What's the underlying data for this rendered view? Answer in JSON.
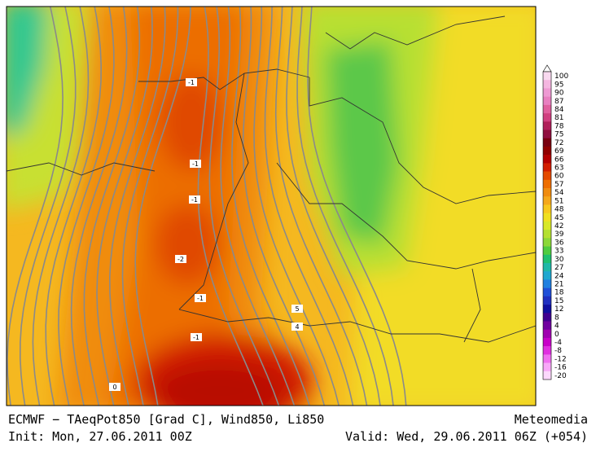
{
  "footer": {
    "title": "ECMWF − TAeqPot850 [Grad C], Wind850, Li850",
    "source": "Meteomedia",
    "init": "Init: Mon, 27.06.2011 00Z",
    "valid": "Valid: Wed, 29.06.2011 06Z (+054)"
  },
  "contour_labels": [
    "-1",
    "-1",
    "-1",
    "-2",
    "-1",
    "-1",
    "0",
    "5",
    "4"
  ],
  "colorbar": [
    {
      "label": "100",
      "color": "#f9d9f0"
    },
    {
      "label": "95",
      "color": "#f4b6e0"
    },
    {
      "label": "90",
      "color": "#ee9ad3"
    },
    {
      "label": "87",
      "color": "#e880c0"
    },
    {
      "label": "84",
      "color": "#e0609e"
    },
    {
      "label": "81",
      "color": "#d04080"
    },
    {
      "label": "78",
      "color": "#b0205a"
    },
    {
      "label": "75",
      "color": "#901040"
    },
    {
      "label": "72",
      "color": "#780010"
    },
    {
      "label": "69",
      "color": "#900000"
    },
    {
      "label": "66",
      "color": "#b40000"
    },
    {
      "label": "63",
      "color": "#d21e00"
    },
    {
      "label": "60",
      "color": "#e44a00"
    },
    {
      "label": "57",
      "color": "#ee6e00"
    },
    {
      "label": "54",
      "color": "#f08c10"
    },
    {
      "label": "51",
      "color": "#f5a81c"
    },
    {
      "label": "48",
      "color": "#f8c81e"
    },
    {
      "label": "45",
      "color": "#f0e020"
    },
    {
      "label": "42",
      "color": "#d8e828"
    },
    {
      "label": "39",
      "color": "#b4e030"
    },
    {
      "label": "36",
      "color": "#8cd838"
    },
    {
      "label": "33",
      "color": "#50cc40"
    },
    {
      "label": "30",
      "color": "#20c070"
    },
    {
      "label": "27",
      "color": "#20b8a8"
    },
    {
      "label": "24",
      "color": "#20a8d0"
    },
    {
      "label": "21",
      "color": "#2080e0"
    },
    {
      "label": "18",
      "color": "#2050d8"
    },
    {
      "label": "15",
      "color": "#2030c0"
    },
    {
      "label": "12",
      "color": "#1010a0"
    },
    {
      "label": "8",
      "color": "#400090"
    },
    {
      "label": "4",
      "color": "#7000a0"
    },
    {
      "label": "0",
      "color": "#a000b0"
    },
    {
      "label": "-4",
      "color": "#c800c8"
    },
    {
      "label": "-8",
      "color": "#e030e0"
    },
    {
      "label": "-12",
      "color": "#f070f0"
    },
    {
      "label": "-16",
      "color": "#f8a8f8"
    },
    {
      "label": "-20",
      "color": "#fcd8fc"
    }
  ]
}
